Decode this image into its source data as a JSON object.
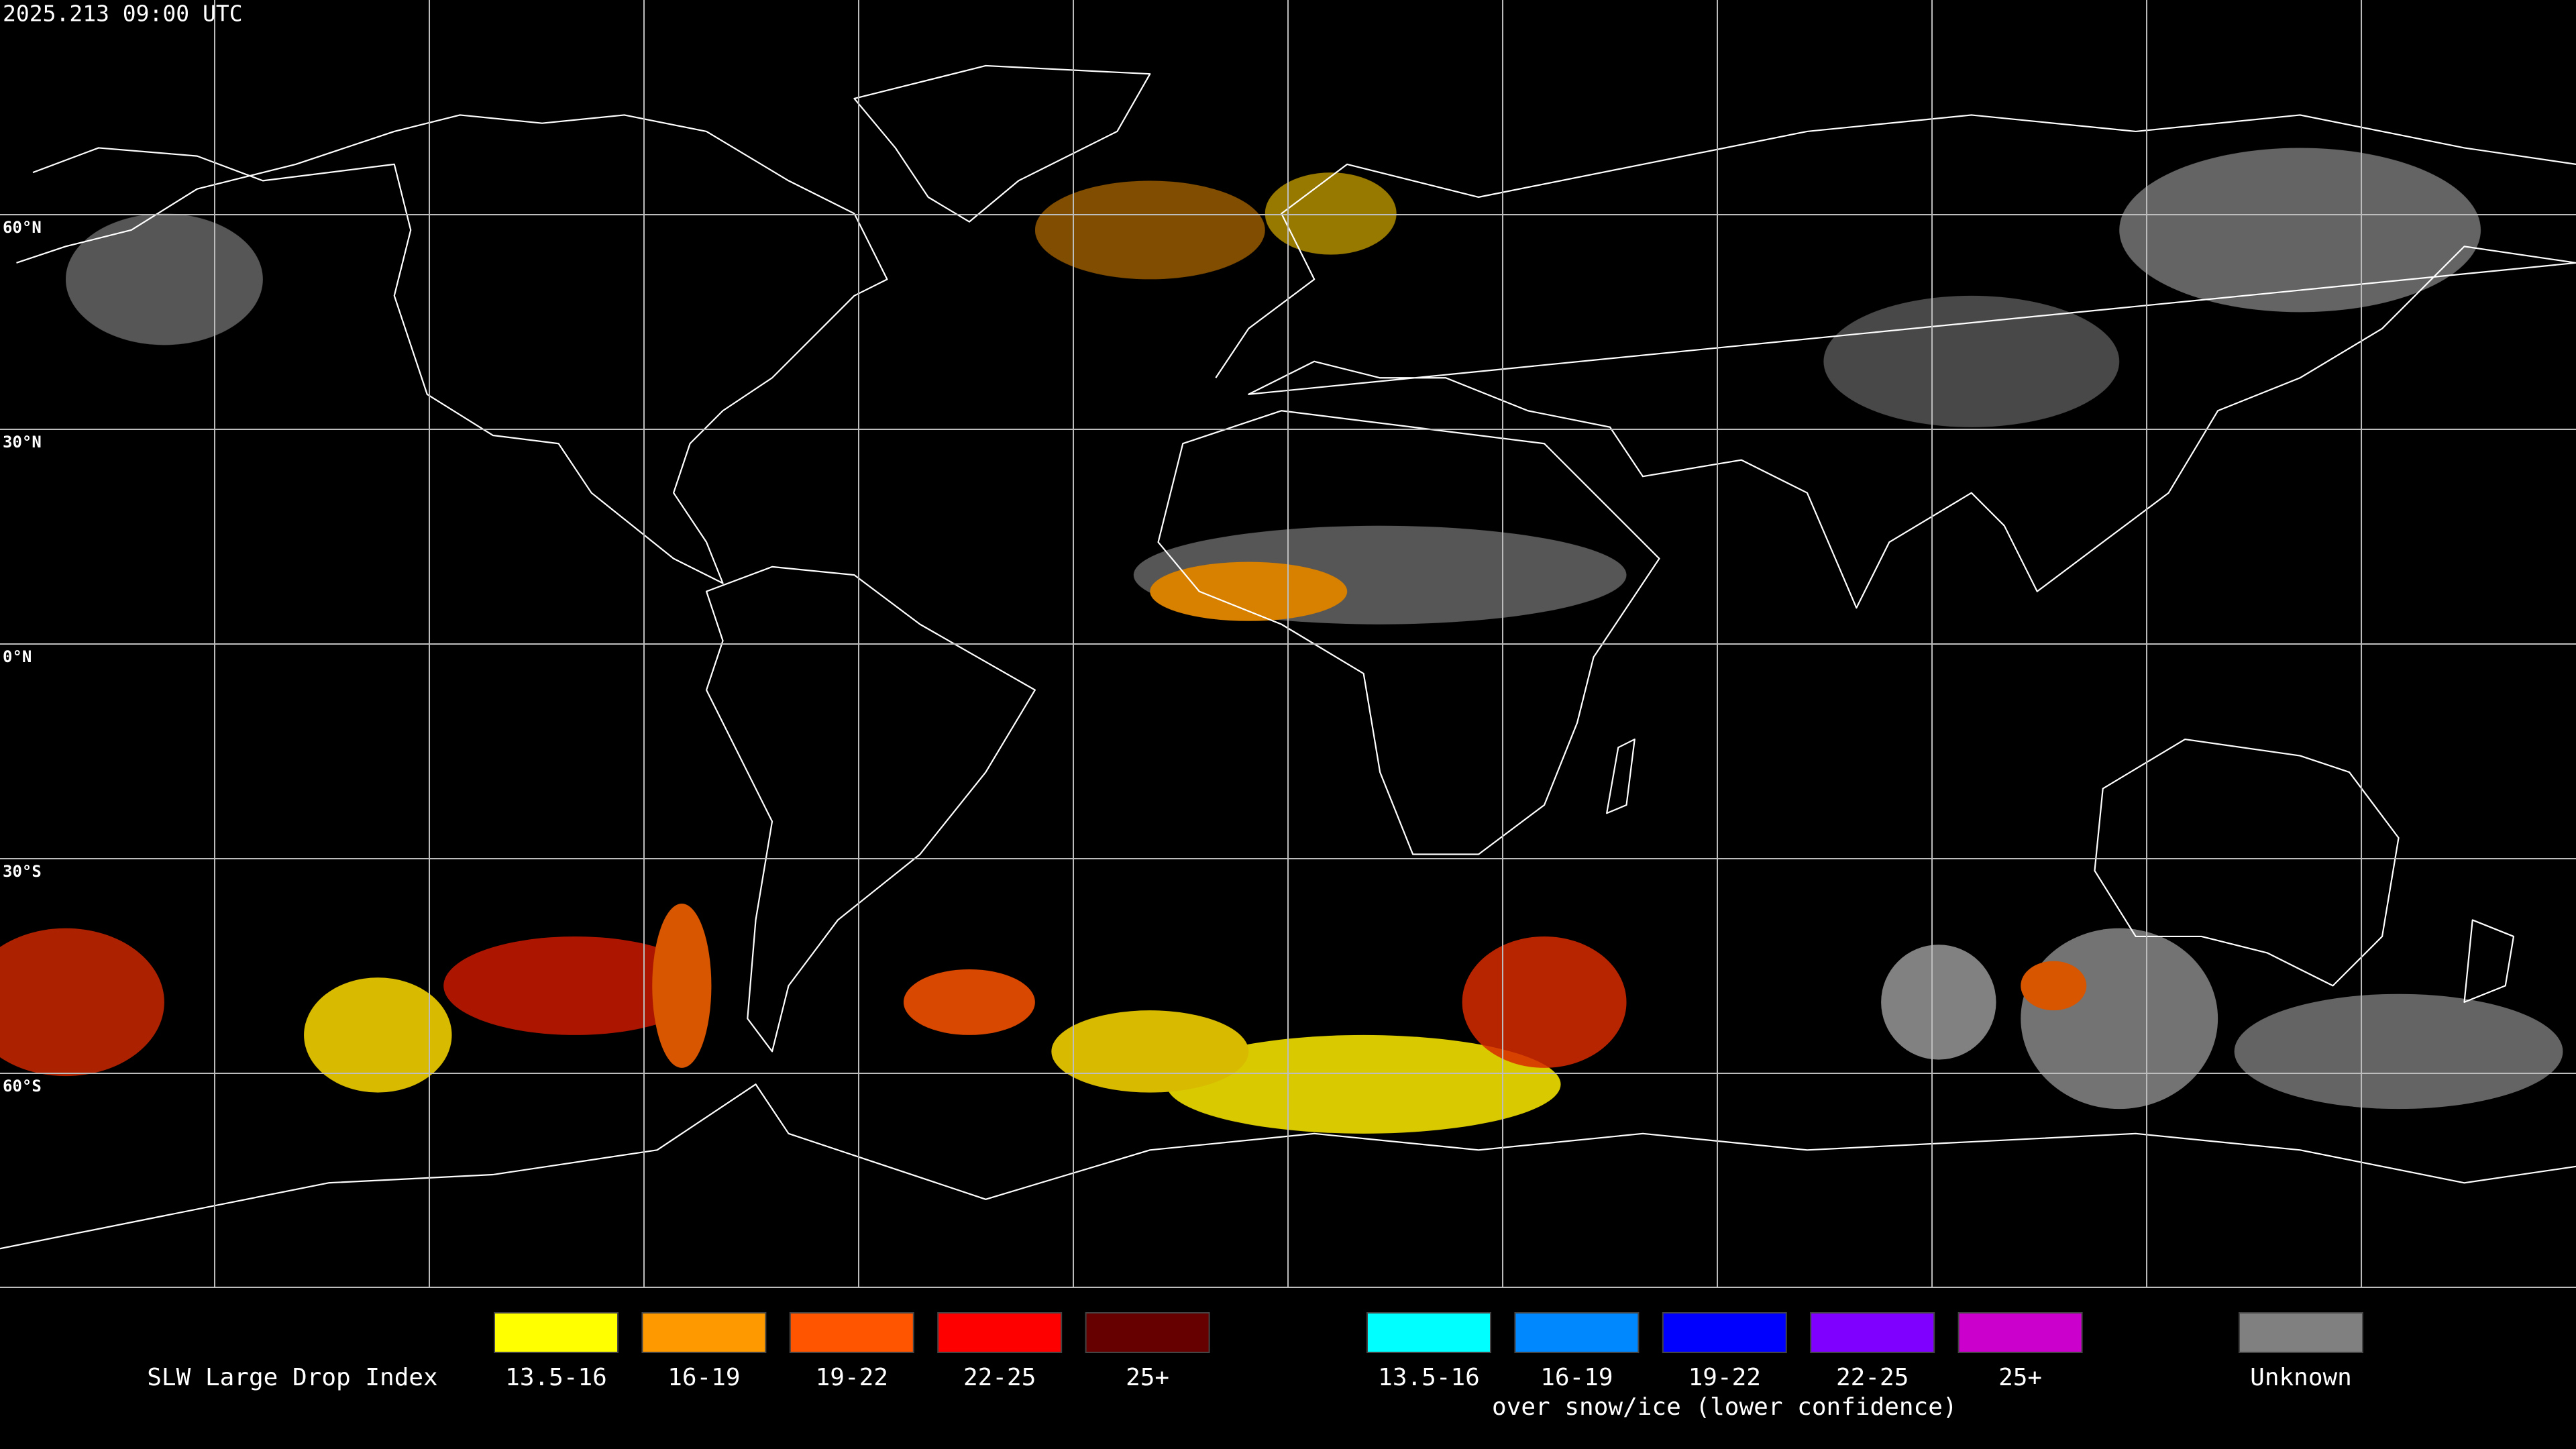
{
  "timestamp": "2025.213 09:00 UTC",
  "latitude_labels": [
    "60°N",
    "30°N",
    "0°N",
    "30°S",
    "60°S"
  ],
  "legend": {
    "title": "SLW Large Drop Index",
    "groups": [
      {
        "items": [
          {
            "label": "13.5-16",
            "color": "#ffff00"
          },
          {
            "label": "16-19",
            "color": "#ff9900"
          },
          {
            "label": "19-22",
            "color": "#ff5500"
          },
          {
            "label": "22-25",
            "color": "#ff0000"
          },
          {
            "label": "25+",
            "color": "#660000"
          }
        ]
      },
      {
        "items": [
          {
            "label": "13.5-16",
            "color": "#00ffff"
          },
          {
            "label": "16-19",
            "color": "#0088ff"
          },
          {
            "label": "19-22",
            "color": "#0000ff"
          },
          {
            "label": "22-25",
            "color": "#8000ff"
          },
          {
            "label": "25+",
            "color": "#cc00cc"
          }
        ],
        "note": "over snow/ice (lower confidence)"
      },
      {
        "items": [
          {
            "label": "Unknown",
            "color": "#808080"
          }
        ]
      }
    ]
  }
}
